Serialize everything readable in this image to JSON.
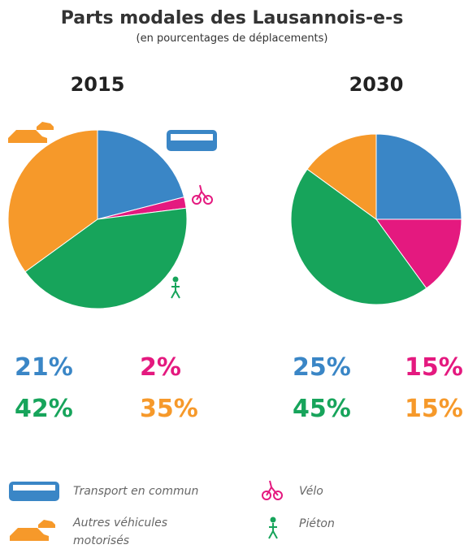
{
  "title": "Parts modales des Lausannois-e-s",
  "subtitle": "(en pourcentages de déplacements)",
  "legend": {
    "items": [
      {
        "name": "Transport en commun",
        "color": "#3a86c6"
      },
      {
        "name": "Vélo",
        "color": "#e4197f"
      },
      {
        "name": "Piéton",
        "color": "#17a45b"
      },
      {
        "name": "Autres véhicules motorisés",
        "color": "#f6992a"
      }
    ]
  },
  "chart_data": [
    {
      "type": "pie",
      "title": "2015",
      "values": [
        21,
        2,
        42,
        35
      ],
      "value_labels": [
        "21%",
        "2%",
        "42%",
        "35%"
      ]
    },
    {
      "type": "pie",
      "title": "2030",
      "values": [
        25,
        15,
        45,
        15
      ],
      "value_labels": [
        "25%",
        "15%",
        "45%",
        "15%"
      ]
    }
  ]
}
